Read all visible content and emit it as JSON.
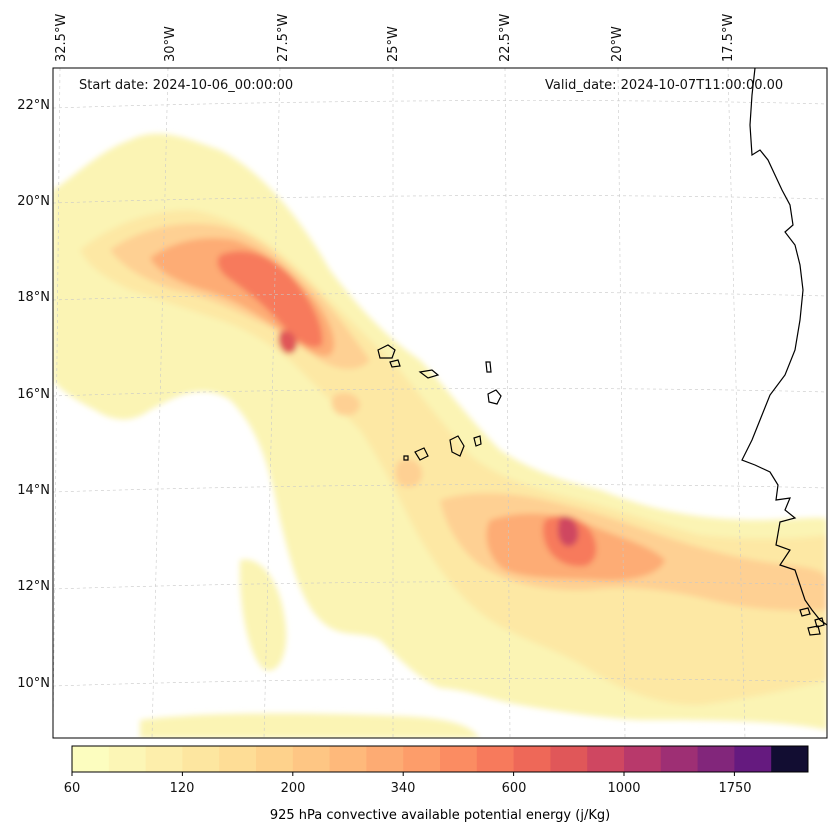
{
  "annotations": {
    "start_date": "Start date: 2024-10-06_00:00:00",
    "valid_date": "Valid_date: 2024-10-07T11:00:00.00"
  },
  "axes": {
    "lon_labels": [
      "32.5°W",
      "30°W",
      "27.5°W",
      "25°W",
      "22.5°W",
      "20°W",
      "17.5°W"
    ],
    "lat_labels": [
      "22°N",
      "20°N",
      "18°N",
      "16°N",
      "14°N",
      "12°N",
      "10°N"
    ]
  },
  "colorbar": {
    "title": "925 hPa convective available potential energy (j/Kg)",
    "tick_labels": [
      "60",
      "120",
      "200",
      "340",
      "600",
      "1000",
      "1750"
    ],
    "colors": [
      "#fcfdbf",
      "#fcf6b6",
      "#fdeeab",
      "#fde6a0",
      "#fedd96",
      "#fed28c",
      "#fec684",
      "#feb97b",
      "#fdab73",
      "#fd9d6a",
      "#fb8c62",
      "#f77a5c",
      "#ee6858",
      "#e05759",
      "#cf4761",
      "#b8396b",
      "#9e2f74",
      "#82267b",
      "#651a7f",
      "#120d32"
    ],
    "colormap": "magma_r"
  },
  "map": {
    "extent": {
      "lon_min": -32.5,
      "lon_max": -15.5,
      "lat_min": 8.8,
      "lat_max": 22.8
    },
    "gridlines": true,
    "variable": "925 hPa convective available potential energy",
    "units": "j/Kg"
  }
}
